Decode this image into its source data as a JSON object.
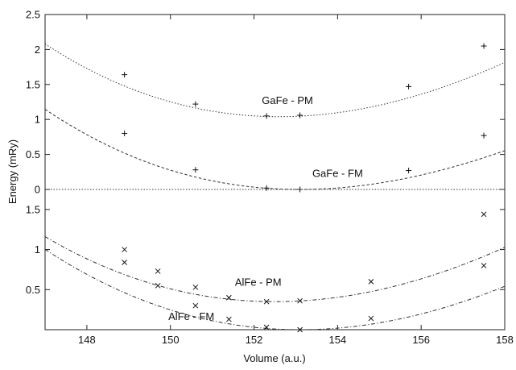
{
  "chart_data": {
    "type": "line",
    "xlabel": "Volume (a.u.)",
    "ylabel": "Energy (mRy)",
    "xlim": [
      147,
      158
    ],
    "x_ticks": [
      148,
      150,
      152,
      154,
      156,
      158
    ],
    "y_axis_note": "two stacked panels sharing the x-axis; upper panel 0 to 2.5, lower panel 0 to 1.75",
    "upper_panel": {
      "ylim": [
        0,
        2.5
      ],
      "y_tick_labels": [
        "0",
        "0.5",
        "1",
        "1.5",
        "2",
        "2.5"
      ],
      "y_ticks": [
        0,
        0.5,
        1,
        1.5,
        2,
        2.5
      ]
    },
    "lower_panel": {
      "ylim": [
        0,
        1.75
      ],
      "y_tick_labels": [
        "0",
        "0.5",
        "1",
        "1.5"
      ],
      "y_ticks": [
        0,
        0.5,
        1,
        1.5
      ]
    },
    "series": [
      {
        "name": "GaFe - PM",
        "panel": "upper",
        "marker": "plus",
        "style": "dotted",
        "fit": {
          "vmin": 152.6,
          "emin": 1.04,
          "curv": 0.0298,
          "cubic": -0.0006
        },
        "points": [
          [
            148.9,
            1.64
          ],
          [
            150.6,
            1.22
          ],
          [
            152.3,
            1.05
          ],
          [
            153.1,
            1.06
          ],
          [
            155.7,
            1.47
          ],
          [
            157.5,
            2.05
          ]
        ]
      },
      {
        "name": "GaFe - FM",
        "panel": "upper",
        "marker": "plus",
        "style": "dashed",
        "fit": {
          "vmin": 153.1,
          "emin": 0.0,
          "curv": 0.0265,
          "cubic": -0.0007
        },
        "points": [
          [
            148.9,
            0.8
          ],
          [
            150.6,
            0.28
          ],
          [
            152.3,
            0.02
          ],
          [
            153.1,
            0.0
          ],
          [
            155.7,
            0.27
          ],
          [
            157.5,
            0.77
          ]
        ]
      },
      {
        "name": "AlFe - PM",
        "panel": "lower",
        "marker": "cross",
        "style": "dashdot",
        "fit": {
          "vmin": 152.5,
          "emin": 0.35,
          "curv": 0.0246,
          "cubic": -0.0004
        },
        "points": [
          [
            148.9,
            1.0
          ],
          [
            149.7,
            0.73
          ],
          [
            150.6,
            0.53
          ],
          [
            151.4,
            0.4
          ],
          [
            152.3,
            0.35
          ],
          [
            153.1,
            0.36
          ],
          [
            154.8,
            0.6
          ],
          [
            157.5,
            1.44
          ]
        ]
      },
      {
        "name": "AlFe - FM",
        "panel": "lower",
        "marker": "cross",
        "style": "dashdot",
        "fit": {
          "vmin": 153.1,
          "emin": 0.0,
          "curv": 0.0245,
          "cubic": -0.0004
        },
        "points": [
          [
            148.9,
            0.84
          ],
          [
            149.7,
            0.55
          ],
          [
            150.6,
            0.3
          ],
          [
            151.4,
            0.13
          ],
          [
            152.3,
            0.03
          ],
          [
            153.1,
            0.0
          ],
          [
            154.8,
            0.14
          ],
          [
            157.5,
            0.8
          ]
        ]
      }
    ],
    "labels": [
      {
        "text": "GaFe - PM",
        "x": 152.8,
        "y": 1.22,
        "panel": "upper"
      },
      {
        "text": "GaFe - FM",
        "x": 154.0,
        "y": 0.18,
        "panel": "upper"
      },
      {
        "text": "AlFe - PM",
        "x": 152.1,
        "y": 0.55,
        "panel": "lower"
      },
      {
        "text": "AlFe - FM",
        "x": 150.5,
        "y": 0.12,
        "panel": "lower"
      }
    ],
    "grid": false,
    "legend": "none"
  }
}
